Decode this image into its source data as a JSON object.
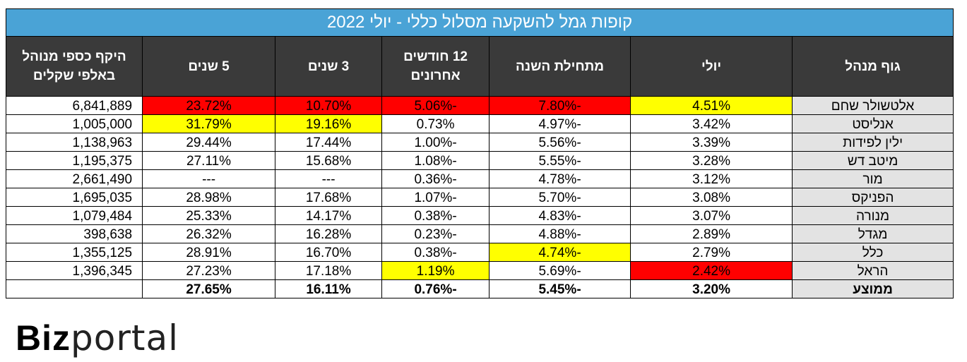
{
  "title": "קופות גמל להשקעה מסלול כללי - יולי 2022",
  "headers": [
    "גוף מנהל",
    "יולי",
    "מתחילת השנה",
    "12 חודשים אחרונים",
    "3 שנים",
    "5 שנים",
    "היקף כספי מנוהל באלפי שקלים"
  ],
  "header_lines": {
    "h12": [
      "12 חודשים",
      "אחרונים"
    ],
    "aum": [
      "היקף כספי מנוהל",
      "באלפי שקלים"
    ]
  },
  "rows": [
    {
      "name": "אלטשולר שחם",
      "july": "4.51%",
      "ytd": "-7.80%",
      "m12": "-5.06%",
      "y3": "10.70%",
      "y5": "23.72%",
      "aum": "6,841,889"
    },
    {
      "name": "אנליסט",
      "july": "3.42%",
      "ytd": "-4.97%",
      "m12": "0.73%",
      "y3": "19.16%",
      "y5": "31.79%",
      "aum": "1,005,000"
    },
    {
      "name": "ילין לפידות",
      "july": "3.39%",
      "ytd": "-5.56%",
      "m12": "-1.00%",
      "y3": "17.44%",
      "y5": "29.44%",
      "aum": "1,138,963"
    },
    {
      "name": "מיטב דש",
      "july": "3.28%",
      "ytd": "-5.55%",
      "m12": "-1.08%",
      "y3": "15.68%",
      "y5": "27.11%",
      "aum": "1,195,375"
    },
    {
      "name": "מור",
      "july": "3.12%",
      "ytd": "-4.78%",
      "m12": "-0.36%",
      "y3": "---",
      "y5": "---",
      "aum": "2,661,490"
    },
    {
      "name": "הפניקס",
      "july": "3.08%",
      "ytd": "-5.70%",
      "m12": "-1.07%",
      "y3": "17.68%",
      "y5": "28.98%",
      "aum": "1,695,035"
    },
    {
      "name": "מנורה",
      "july": "3.07%",
      "ytd": "-4.83%",
      "m12": "-0.38%",
      "y3": "14.17%",
      "y5": "25.33%",
      "aum": "1,079,484"
    },
    {
      "name": "מגדל",
      "july": "2.89%",
      "ytd": "-4.88%",
      "m12": "-0.23%",
      "y3": "16.28%",
      "y5": "26.32%",
      "aum": "398,638"
    },
    {
      "name": "כלל",
      "july": "2.79%",
      "ytd": "-4.74%",
      "m12": "-0.38%",
      "y3": "16.70%",
      "y5": "28.91%",
      "aum": "1,355,125"
    },
    {
      "name": "הראל",
      "july": "2.42%",
      "ytd": "-5.69%",
      "m12": "1.19%",
      "y3": "17.18%",
      "y5": "27.23%",
      "aum": "1,396,345"
    }
  ],
  "average": {
    "name": "ממוצע",
    "july": "3.20%",
    "ytd": "-5.45%",
    "m12": "-0.76%",
    "y3": "16.11%",
    "y5": "27.65%",
    "aum": ""
  },
  "highlight_colors": {
    "best": "#ffff00",
    "worst": "#ff0000",
    "title_bg": "#4aa3d6",
    "header_bg": "#3a3a3a",
    "name_bg": "#e3e3e3"
  },
  "logo": {
    "part1": "Biz",
    "part2": "portal"
  }
}
